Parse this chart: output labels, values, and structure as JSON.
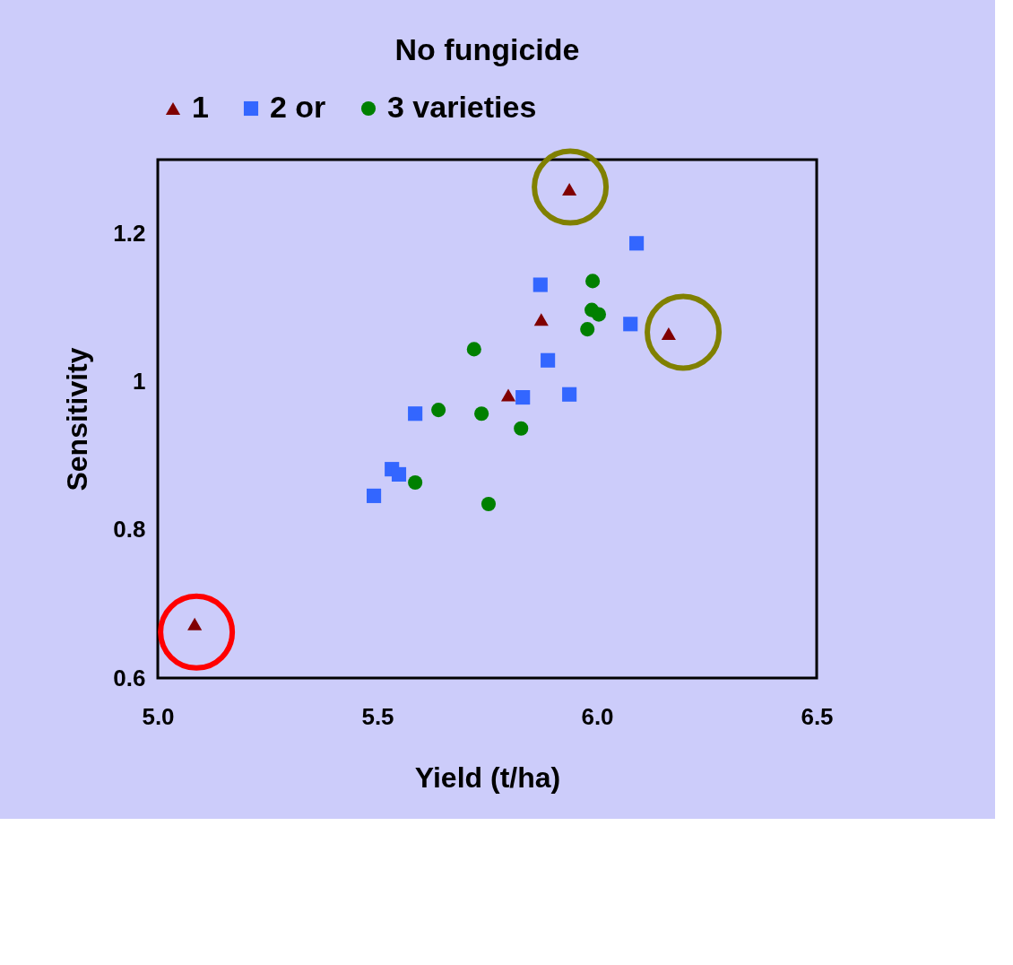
{
  "chart_data": {
    "type": "scatter",
    "title": "No fungicide",
    "xlabel": "Yield (t/ha)",
    "ylabel": "Sensitivity",
    "xlim": [
      5.0,
      6.5
    ],
    "xticks": [
      {
        "value": 5.0,
        "label": "5.0"
      },
      5.5,
      {
        "value": 6.0,
        "label": "6.0"
      },
      6.5
    ],
    "ylim": [
      0.6,
      1.3
    ],
    "yticks": [
      0.6,
      0.8,
      1,
      1.2
    ],
    "grid": false,
    "legend": "top",
    "series": [
      {
        "name": "1",
        "color": "#800000",
        "marker": "triangle",
        "x": [
          5.084,
          5.937,
          5.873,
          5.798,
          6.163
        ],
        "values": [
          0.673,
          1.26,
          1.084,
          0.982,
          1.065
        ]
      },
      {
        "name": "2 or",
        "color": "#3366ff",
        "marker": "square",
        "x": [
          6.09,
          5.871,
          6.076,
          5.888,
          5.831,
          5.937,
          5.586,
          5.492,
          5.533,
          5.549
        ],
        "values": [
          1.187,
          1.131,
          1.078,
          1.029,
          0.979,
          0.983,
          0.957,
          0.846,
          0.882,
          0.875
        ]
      },
      {
        "name": "3 varieties",
        "color": "#008000",
        "marker": "circle",
        "x": [
          5.99,
          5.988,
          6.004,
          5.978,
          5.72,
          5.639,
          5.737,
          5.827,
          5.586,
          5.753
        ],
        "values": [
          1.136,
          1.097,
          1.091,
          1.071,
          1.044,
          0.962,
          0.957,
          0.937,
          0.864,
          0.835
        ]
      },
      {
        "type": "bubble",
        "color": "#ff0000",
        "x": [
          5.088
        ],
        "values": [
          0.662
        ],
        "sizes": [
          1
        ]
      },
      {
        "type": "bubble",
        "color": "#808000",
        "x": [
          5.939,
          6.196
        ],
        "values": [
          1.263,
          1.067
        ],
        "sizes": [
          1,
          1
        ]
      }
    ]
  }
}
